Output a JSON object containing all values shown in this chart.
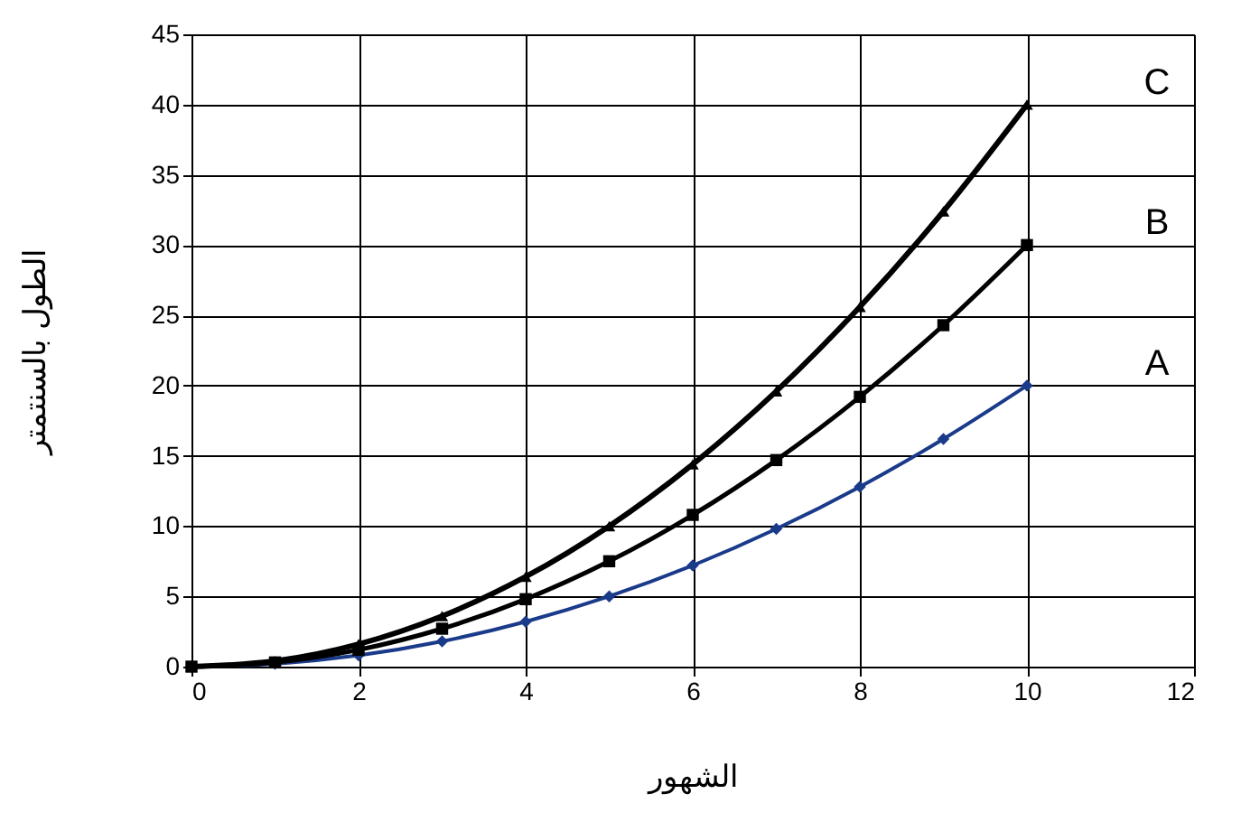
{
  "chart_data": {
    "type": "line",
    "xlabel": "الشهور",
    "ylabel": "الطول بالسنتمتر",
    "x": [
      0,
      1,
      2,
      3,
      4,
      5,
      6,
      7,
      8,
      9,
      10
    ],
    "series": [
      {
        "name": "A",
        "color": "#1a3a8a",
        "marker": "diamond",
        "values": [
          0,
          0.2,
          0.8,
          1.8,
          3.2,
          5,
          7.2,
          9.8,
          12.8,
          16.2,
          20
        ]
      },
      {
        "name": "B",
        "color": "#000000",
        "marker": "square",
        "values": [
          0,
          0.3,
          1.2,
          2.7,
          4.8,
          7.5,
          10.8,
          14.7,
          19.2,
          24.3,
          30
        ]
      },
      {
        "name": "C",
        "color": "#000000",
        "marker": "triangle",
        "values": [
          0,
          0.4,
          1.6,
          3.6,
          6.4,
          10,
          14.4,
          19.6,
          25.6,
          32.4,
          40
        ]
      }
    ],
    "xlim": [
      0,
      12
    ],
    "xticks": [
      0,
      2,
      4,
      6,
      8,
      10,
      12
    ],
    "ylim": [
      0,
      45
    ],
    "yticks": [
      0,
      5,
      10,
      15,
      20,
      25,
      30,
      35,
      40,
      45
    ],
    "grid": true
  }
}
